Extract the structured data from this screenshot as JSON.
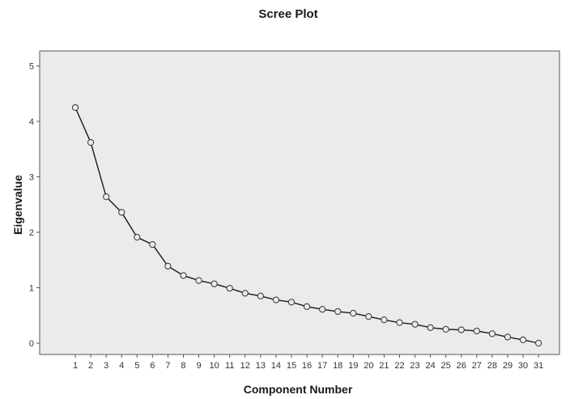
{
  "colors": {
    "plot_background": "#ebebeb",
    "frame": "#555555",
    "line": "#1a1a1a",
    "marker_stroke": "#333333",
    "marker_fill": "#ebebeb"
  },
  "chart_data": {
    "type": "line",
    "title": "Scree Plot",
    "xlabel": "Component Number",
    "ylabel": "Eigenvalue",
    "x": [
      1,
      2,
      3,
      4,
      5,
      6,
      7,
      8,
      9,
      10,
      11,
      12,
      13,
      14,
      15,
      16,
      17,
      18,
      19,
      20,
      21,
      22,
      23,
      24,
      25,
      26,
      27,
      28,
      29,
      30,
      31
    ],
    "x_tick_labels": [
      "1",
      "2",
      "3",
      "4",
      "5",
      "6",
      "7",
      "8",
      "9",
      "10",
      "11",
      "12",
      "13",
      "14",
      "15",
      "16",
      "17",
      "18",
      "19",
      "20",
      "21",
      "22",
      "23",
      "24",
      "25",
      "26",
      "27",
      "28",
      "29",
      "30",
      "31"
    ],
    "y_ticks": [
      0,
      1,
      2,
      3,
      4,
      5
    ],
    "y_tick_labels": [
      "0",
      "1",
      "2",
      "3",
      "4",
      "5"
    ],
    "ylim": [
      -0.1,
      5.2
    ],
    "series": [
      {
        "values": [
          4.25,
          3.62,
          2.64,
          2.36,
          1.91,
          1.78,
          1.39,
          1.22,
          1.13,
          1.07,
          0.99,
          0.9,
          0.85,
          0.78,
          0.74,
          0.66,
          0.61,
          0.57,
          0.54,
          0.48,
          0.42,
          0.37,
          0.34,
          0.28,
          0.25,
          0.24,
          0.22,
          0.17,
          0.11,
          0.06,
          0.0
        ]
      }
    ],
    "marker": "circle",
    "grid": false,
    "legend": "none"
  }
}
